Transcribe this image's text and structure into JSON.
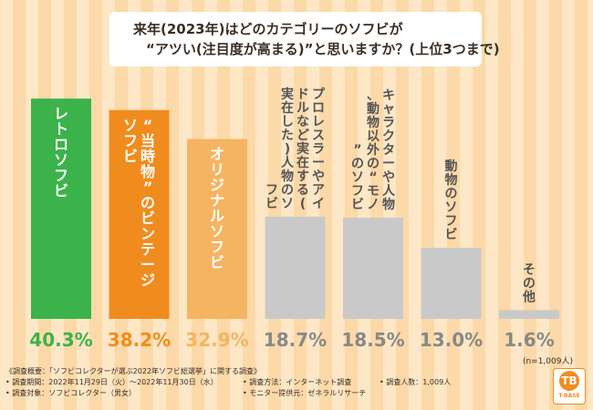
{
  "title": {
    "line1": "来年(2023年)はどのカテゴリーのソフビが",
    "line2": "“アツい(注目度が高まる)”と思いますか？(上位3つまで)"
  },
  "chart_data": {
    "type": "bar",
    "categories": [
      "レトロソフビ",
      "“当時物”のビンテージソフビ",
      "オリジナルソフビ",
      "プロレスラーやアイドルなど実在する(実在した)人物のソフビ",
      "キャラクターや人物、動物以外の“モノ”のソフビ",
      "動物のソフビ",
      "その他"
    ],
    "values": [
      40.3,
      38.2,
      32.9,
      18.7,
      18.5,
      13.0,
      1.6
    ],
    "value_labels": [
      "40.3%",
      "38.2%",
      "32.9%",
      "18.7%",
      "18.5%",
      "13.0%",
      "1.6%"
    ],
    "colors": [
      "#3bb34a",
      "#f08c1e",
      "#f5b461",
      "#c9c9c9",
      "#c9c9c9",
      "#c9c9c9",
      "#c9c9c9"
    ],
    "label_colors": [
      "#3bb34a",
      "#f08c1e",
      "#f5b461",
      "#888888",
      "#888888",
      "#888888",
      "#888888"
    ],
    "ylim": [
      0,
      45
    ]
  },
  "n_note": "(n=1,009人)",
  "footer": {
    "heading": "《調査概要：「ソフビコレクターが選ぶ2022年ソフビ総選挙」に関する調査》",
    "period": "• 調査期間：2022年11月29日（火）～2022年11月30日（水）",
    "method": "• 調査方法：インターネット調査",
    "count": "• 調査人数：1,009人",
    "target": "• 調査対象：ソフビコレクター（男女）",
    "provider": "• モニター提供元：ゼネラルリサーチ"
  },
  "logo": {
    "mark": "TB",
    "text": "T-BASE"
  }
}
